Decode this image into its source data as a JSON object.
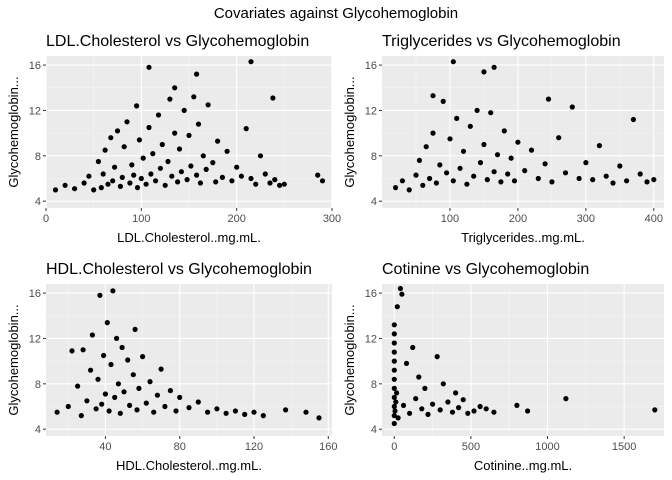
{
  "figure_title": "Covariates against Glycohemoglobin",
  "chart_data": [
    {
      "type": "scatter",
      "title": "LDL.Cholesterol vs Glycohemoglobin",
      "xlabel": "LDL.Cholesterol..mg.mL.",
      "ylabel": "Glycohemoglobin...",
      "xlim": [
        0,
        300
      ],
      "ylim": [
        3.4,
        16.8
      ],
      "xticks": [
        0,
        100,
        200,
        300
      ],
      "yticks": [
        4,
        8,
        12,
        16
      ],
      "grid": true,
      "point_color": "#000000",
      "points": [
        [
          10,
          5.0
        ],
        [
          20,
          5.4
        ],
        [
          30,
          5.1
        ],
        [
          40,
          5.6
        ],
        [
          45,
          6.2
        ],
        [
          50,
          5.0
        ],
        [
          55,
          7.5
        ],
        [
          58,
          5.2
        ],
        [
          60,
          6.4
        ],
        [
          62,
          8.5
        ],
        [
          65,
          5.5
        ],
        [
          68,
          9.6
        ],
        [
          70,
          5.8
        ],
        [
          72,
          7.0
        ],
        [
          75,
          10.2
        ],
        [
          78,
          5.3
        ],
        [
          80,
          6.1
        ],
        [
          82,
          8.8
        ],
        [
          85,
          11.0
        ],
        [
          88,
          5.6
        ],
        [
          90,
          7.2
        ],
        [
          92,
          6.3
        ],
        [
          95,
          12.4
        ],
        [
          96,
          5.2
        ],
        [
          98,
          9.4
        ],
        [
          100,
          6.0
        ],
        [
          102,
          7.8
        ],
        [
          105,
          5.5
        ],
        [
          108,
          10.5
        ],
        [
          110,
          6.4
        ],
        [
          112,
          8.2
        ],
        [
          115,
          5.8
        ],
        [
          118,
          11.6
        ],
        [
          120,
          6.9
        ],
        [
          122,
          9.0
        ],
        [
          125,
          5.4
        ],
        [
          128,
          7.5
        ],
        [
          130,
          13.0
        ],
        [
          132,
          6.2
        ],
        [
          135,
          10.0
        ],
        [
          138,
          5.7
        ],
        [
          140,
          8.6
        ],
        [
          142,
          6.6
        ],
        [
          145,
          12.0
        ],
        [
          148,
          5.9
        ],
        [
          150,
          9.8
        ],
        [
          152,
          7.1
        ],
        [
          155,
          13.2
        ],
        [
          158,
          6.3
        ],
        [
          160,
          10.8
        ],
        [
          162,
          5.6
        ],
        [
          165,
          8.0
        ],
        [
          168,
          6.8
        ],
        [
          170,
          12.5
        ],
        [
          175,
          7.4
        ],
        [
          178,
          5.7
        ],
        [
          180,
          9.3
        ],
        [
          185,
          6.1
        ],
        [
          190,
          8.4
        ],
        [
          195,
          5.8
        ],
        [
          200,
          7.0
        ],
        [
          205,
          6.2
        ],
        [
          210,
          10.4
        ],
        [
          215,
          6.0
        ],
        [
          220,
          5.5
        ],
        [
          225,
          8.0
        ],
        [
          230,
          6.4
        ],
        [
          235,
          5.6
        ],
        [
          240,
          5.9
        ],
        [
          245,
          5.4
        ],
        [
          250,
          5.5
        ],
        [
          285,
          6.3
        ],
        [
          290,
          5.8
        ],
        [
          108,
          15.8
        ],
        [
          158,
          15.2
        ],
        [
          215,
          16.3
        ],
        [
          238,
          13.1
        ],
        [
          135,
          14.0
        ]
      ]
    },
    {
      "type": "scatter",
      "title": "Triglycerides vs Glycohemoglobin",
      "xlabel": "Triglycerides..mg.mL.",
      "ylabel": "Glycohemoglobin...",
      "xlim": [
        0,
        415
      ],
      "ylim": [
        3.4,
        16.8
      ],
      "xticks": [
        100,
        200,
        300,
        400
      ],
      "yticks": [
        4,
        8,
        12,
        16
      ],
      "grid": true,
      "point_color": "#000000",
      "points": [
        [
          20,
          5.2
        ],
        [
          30,
          5.8
        ],
        [
          40,
          5.0
        ],
        [
          50,
          6.3
        ],
        [
          55,
          7.6
        ],
        [
          60,
          5.4
        ],
        [
          65,
          8.8
        ],
        [
          70,
          6.0
        ],
        [
          75,
          10.0
        ],
        [
          80,
          5.6
        ],
        [
          85,
          7.2
        ],
        [
          90,
          12.8
        ],
        [
          95,
          6.5
        ],
        [
          100,
          9.5
        ],
        [
          105,
          5.8
        ],
        [
          110,
          11.3
        ],
        [
          115,
          6.9
        ],
        [
          120,
          8.4
        ],
        [
          125,
          5.5
        ],
        [
          130,
          10.6
        ],
        [
          135,
          6.2
        ],
        [
          140,
          12.0
        ],
        [
          145,
          7.4
        ],
        [
          150,
          9.0
        ],
        [
          155,
          5.9
        ],
        [
          160,
          11.8
        ],
        [
          165,
          6.6
        ],
        [
          170,
          8.1
        ],
        [
          175,
          5.7
        ],
        [
          180,
          10.2
        ],
        [
          185,
          6.4
        ],
        [
          190,
          7.8
        ],
        [
          195,
          5.8
        ],
        [
          200,
          9.2
        ],
        [
          210,
          6.7
        ],
        [
          220,
          8.5
        ],
        [
          230,
          6.0
        ],
        [
          240,
          7.3
        ],
        [
          250,
          5.7
        ],
        [
          260,
          9.6
        ],
        [
          270,
          6.5
        ],
        [
          280,
          12.3
        ],
        [
          290,
          6.0
        ],
        [
          300,
          7.4
        ],
        [
          310,
          5.9
        ],
        [
          320,
          8.9
        ],
        [
          330,
          6.2
        ],
        [
          340,
          5.6
        ],
        [
          350,
          7.1
        ],
        [
          360,
          5.8
        ],
        [
          370,
          11.2
        ],
        [
          380,
          6.4
        ],
        [
          390,
          5.7
        ],
        [
          400,
          5.9
        ],
        [
          105,
          16.3
        ],
        [
          150,
          15.4
        ],
        [
          165,
          15.8
        ],
        [
          75,
          13.3
        ],
        [
          245,
          13.0
        ]
      ]
    },
    {
      "type": "scatter",
      "title": "HDL.Cholesterol vs Glycohemoglobin",
      "xlabel": "HDL.Cholesterol..mg.mL.",
      "ylabel": "Glycohemoglobin...",
      "xlim": [
        8,
        162
      ],
      "ylim": [
        3.4,
        16.8
      ],
      "xticks": [
        40,
        80,
        120,
        160
      ],
      "yticks": [
        4,
        8,
        12,
        16
      ],
      "grid": true,
      "point_color": "#000000",
      "points": [
        [
          14,
          5.5
        ],
        [
          20,
          6.0
        ],
        [
          22,
          10.9
        ],
        [
          25,
          7.8
        ],
        [
          27,
          5.2
        ],
        [
          28,
          11.0
        ],
        [
          30,
          6.5
        ],
        [
          32,
          9.2
        ],
        [
          33,
          12.3
        ],
        [
          35,
          5.8
        ],
        [
          36,
          8.4
        ],
        [
          37,
          15.8
        ],
        [
          38,
          6.2
        ],
        [
          39,
          10.5
        ],
        [
          40,
          7.1
        ],
        [
          41,
          13.4
        ],
        [
          42,
          5.6
        ],
        [
          43,
          9.7
        ],
        [
          44,
          16.2
        ],
        [
          45,
          6.8
        ],
        [
          46,
          12.0
        ],
        [
          47,
          8.0
        ],
        [
          48,
          5.4
        ],
        [
          49,
          11.2
        ],
        [
          50,
          7.3
        ],
        [
          52,
          10.1
        ],
        [
          53,
          6.1
        ],
        [
          55,
          8.8
        ],
        [
          56,
          12.8
        ],
        [
          57,
          5.7
        ],
        [
          58,
          7.6
        ],
        [
          60,
          10.4
        ],
        [
          62,
          6.3
        ],
        [
          64,
          8.2
        ],
        [
          66,
          5.5
        ],
        [
          68,
          7.0
        ],
        [
          70,
          9.3
        ],
        [
          72,
          6.0
        ],
        [
          75,
          7.4
        ],
        [
          78,
          5.6
        ],
        [
          80,
          6.8
        ],
        [
          85,
          5.9
        ],
        [
          90,
          6.4
        ],
        [
          95,
          5.5
        ],
        [
          100,
          5.8
        ],
        [
          105,
          5.4
        ],
        [
          110,
          5.6
        ],
        [
          115,
          5.3
        ],
        [
          120,
          5.5
        ],
        [
          125,
          5.2
        ],
        [
          137,
          5.7
        ],
        [
          148,
          5.5
        ],
        [
          155,
          5.0
        ]
      ]
    },
    {
      "type": "scatter",
      "title": "Cotinine vs Glycohemoglobin",
      "xlabel": "Cotinine..mg.mL.",
      "ylabel": "Glycohemoglobin...",
      "xlim": [
        -80,
        1760
      ],
      "ylim": [
        3.4,
        16.8
      ],
      "xticks": [
        0,
        500,
        1000,
        1500
      ],
      "yticks": [
        4,
        8,
        12,
        16
      ],
      "grid": true,
      "point_color": "#000000",
      "points": [
        [
          0,
          4.5
        ],
        [
          0,
          5.2
        ],
        [
          0,
          6.0
        ],
        [
          0,
          6.8
        ],
        [
          0,
          7.6
        ],
        [
          0,
          8.4
        ],
        [
          0,
          9.2
        ],
        [
          0,
          10.0
        ],
        [
          0,
          10.8
        ],
        [
          0,
          11.6
        ],
        [
          0,
          12.4
        ],
        [
          0,
          13.2
        ],
        [
          5,
          5.6
        ],
        [
          10,
          6.4
        ],
        [
          15,
          7.2
        ],
        [
          20,
          14.8
        ],
        [
          25,
          5.0
        ],
        [
          40,
          16.4
        ],
        [
          50,
          15.9
        ],
        [
          60,
          6.1
        ],
        [
          80,
          9.8
        ],
        [
          100,
          5.4
        ],
        [
          120,
          11.2
        ],
        [
          140,
          6.7
        ],
        [
          160,
          8.6
        ],
        [
          180,
          5.8
        ],
        [
          200,
          7.6
        ],
        [
          220,
          5.3
        ],
        [
          250,
          6.2
        ],
        [
          280,
          10.4
        ],
        [
          300,
          5.7
        ],
        [
          320,
          8.0
        ],
        [
          350,
          6.4
        ],
        [
          380,
          5.5
        ],
        [
          400,
          7.2
        ],
        [
          420,
          5.9
        ],
        [
          450,
          6.6
        ],
        [
          480,
          5.4
        ],
        [
          520,
          5.6
        ],
        [
          560,
          6.0
        ],
        [
          600,
          5.8
        ],
        [
          650,
          5.5
        ],
        [
          800,
          6.1
        ],
        [
          870,
          5.6
        ],
        [
          1120,
          6.7
        ],
        [
          1700,
          5.7
        ]
      ]
    }
  ]
}
